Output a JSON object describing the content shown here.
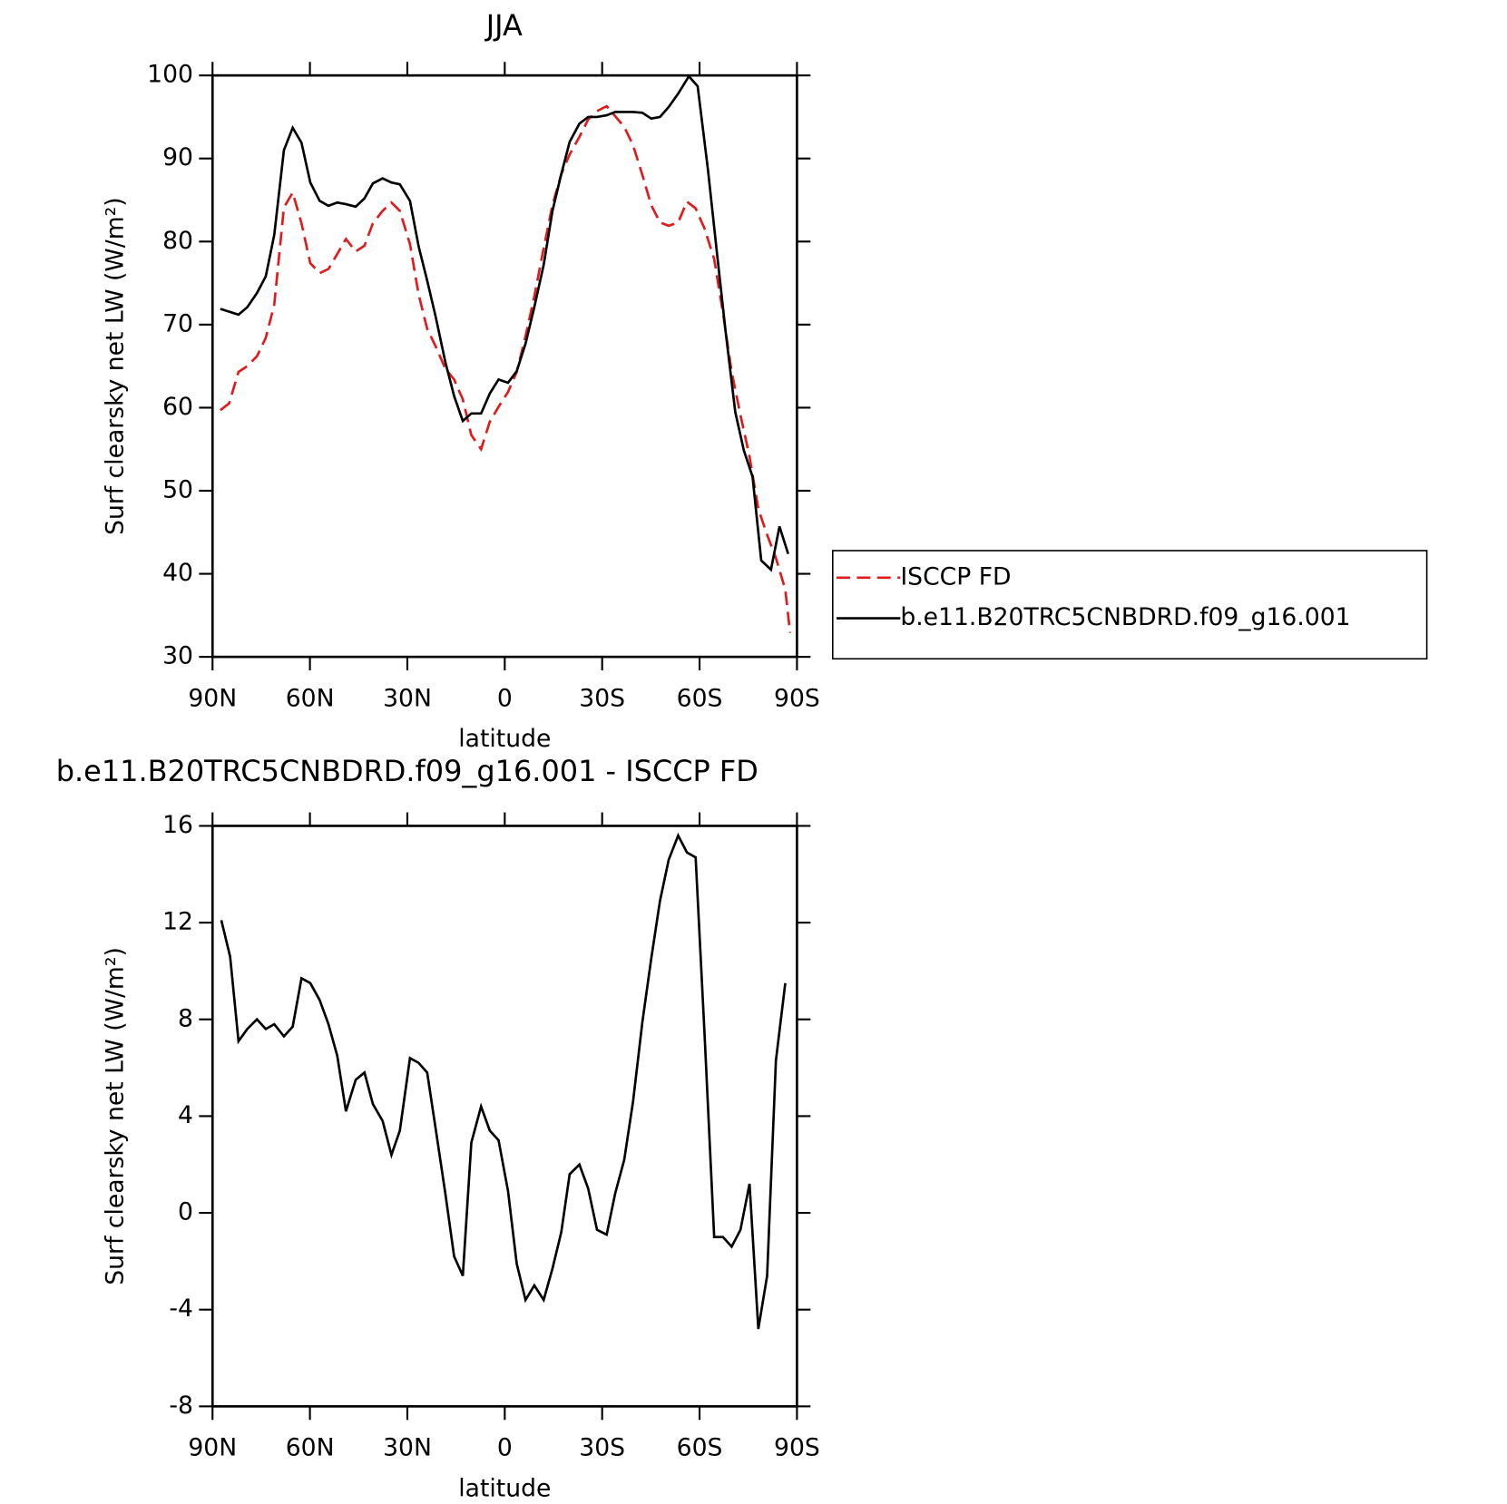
{
  "chart_data": [
    {
      "type": "line",
      "title": "JJA",
      "xlabel": "latitude",
      "ylabel": "Surf clearsky net LW (W/m²)",
      "xlim": [
        90,
        -90
      ],
      "xticks": [
        {
          "value": 90,
          "label": "90N"
        },
        {
          "value": 60,
          "label": "60N"
        },
        {
          "value": 30,
          "label": "30N"
        },
        0,
        {
          "value": -30,
          "label": "30S"
        },
        {
          "value": -60,
          "label": "60S"
        },
        {
          "value": -90,
          "label": "90S"
        }
      ],
      "ylim": [
        30,
        100
      ],
      "yticks": [
        30,
        40,
        50,
        60,
        70,
        80,
        90,
        100
      ],
      "legend": "right",
      "series": [
        {
          "name": "ISCCP FD",
          "color": "#e31a1c",
          "dash": true,
          "x": [
            87.6,
            84.9,
            82,
            79.3,
            76.3,
            73.6,
            71,
            68,
            65.3,
            62.6,
            59.9,
            57,
            54.3,
            51.6,
            48.9,
            45.9,
            43.2,
            40.6,
            37.6,
            34.9,
            32.3,
            29.2,
            26.5,
            23.9,
            21.3,
            18.3,
            15.6,
            12.9,
            10.3,
            7.3,
            4.6,
            1.9,
            -1,
            -3.7,
            -6.4,
            -9.1,
            -12,
            -14.7,
            -17.4,
            -20,
            -23,
            -25.7,
            -28.4,
            -31.4,
            -34,
            -36.8,
            -39.5,
            -42.4,
            -45.1,
            -47.8,
            -50.5,
            -53.4,
            -56.1,
            -58.8,
            -61.5,
            -64.5,
            -67.2,
            -69.9,
            -72.6,
            -75.4,
            -78.1,
            -80.8,
            -83.5,
            -86.4,
            -87.9
          ],
          "values": [
            59.7,
            60.5,
            64.3,
            65,
            66.2,
            68.4,
            72.4,
            84.1,
            85.9,
            82.2,
            77.4,
            76.2,
            76.7,
            78.5,
            80.3,
            78.8,
            79.5,
            82.2,
            83.7,
            84.7,
            83.7,
            79.7,
            73.6,
            69.5,
            67.4,
            64.7,
            63.4,
            61,
            56.7,
            55,
            58.3,
            60.1,
            61.9,
            64.3,
            68.6,
            73.4,
            79.2,
            84.4,
            88.1,
            90.5,
            92.6,
            94.7,
            95.7,
            96.3,
            95.1,
            93.8,
            91.6,
            88,
            84.4,
            82.3,
            81.9,
            82.3,
            84.8,
            84,
            81.6,
            77.9,
            71.4,
            64.3,
            59.1,
            54.1,
            47.8,
            44.7,
            41.9,
            38.1,
            32.9
          ]
        },
        {
          "name": "b.e11.B20TRC5CNBDRD.f09_g16.001",
          "color": "#000000",
          "dash": false,
          "x": [
            87.6,
            82,
            79.3,
            76.3,
            73.6,
            71,
            68,
            65.3,
            62.6,
            59.9,
            57,
            54.3,
            51.6,
            48.9,
            45.9,
            43.2,
            40.6,
            37.6,
            34.9,
            32.3,
            29.2,
            26.5,
            23.9,
            21.3,
            18.3,
            15.6,
            12.9,
            10.3,
            7.3,
            4.6,
            1.9,
            -1,
            -3.7,
            -6.4,
            -9.1,
            -12,
            -14.7,
            -17.4,
            -20,
            -23,
            -25.7,
            -28.4,
            -31.4,
            -34,
            -36.8,
            -39.5,
            -42.4,
            -45.1,
            -47.8,
            -50.5,
            -53.4,
            -56.7,
            -59.4,
            -62.6,
            -65.3,
            -68,
            -71,
            -73.6,
            -76.3,
            -79,
            -82,
            -84.6,
            -87.3
          ],
          "values": [
            71.9,
            71.2,
            72.1,
            73.8,
            75.8,
            80.8,
            91,
            93.7,
            91.9,
            87.1,
            84.9,
            84.3,
            84.7,
            84.5,
            84.2,
            85.2,
            87,
            87.6,
            87.1,
            86.9,
            84.9,
            79.4,
            75.3,
            71,
            65.5,
            61.4,
            58.4,
            59.3,
            59.3,
            61.7,
            63.4,
            63,
            64.4,
            67.7,
            72.1,
            77.2,
            83.7,
            88.1,
            92,
            94.2,
            95,
            95,
            95.2,
            95.6,
            95.6,
            95.6,
            95.5,
            94.8,
            95,
            96.2,
            97.8,
            99.9,
            98.7,
            88.6,
            78.8,
            69.2,
            59.5,
            54.9,
            51.7,
            41.6,
            40.5,
            45.7,
            42.4
          ]
        }
      ]
    },
    {
      "type": "line",
      "title": "b.e11.B20TRC5CNBDRD.f09_g16.001 - ISCCP FD",
      "xlabel": "latitude",
      "ylabel": "Surf clearsky net LW (W/m²)",
      "xlim": [
        90,
        -90
      ],
      "xticks": [
        {
          "value": 90,
          "label": "90N"
        },
        {
          "value": 60,
          "label": "60N"
        },
        {
          "value": 30,
          "label": "30N"
        },
        0,
        {
          "value": -30,
          "label": "30S"
        },
        {
          "value": -60,
          "label": "60S"
        },
        {
          "value": -90,
          "label": "90S"
        }
      ],
      "ylim": [
        -8,
        16
      ],
      "yticks": [
        -8,
        -4,
        0,
        4,
        8,
        12,
        16
      ],
      "series": [
        {
          "color": "#000000",
          "dash": false,
          "x": [
            87.3,
            84.6,
            82,
            79.3,
            76.3,
            73.6,
            71,
            68,
            65.3,
            62.6,
            59.9,
            57,
            54.3,
            51.6,
            48.9,
            45.9,
            43.2,
            40.6,
            37.6,
            34.9,
            32.3,
            29.2,
            26.5,
            23.9,
            21.3,
            18.3,
            15.6,
            12.9,
            10.3,
            7.3,
            4.6,
            1.9,
            -1,
            -3.7,
            -6.4,
            -9.1,
            -12,
            -14.7,
            -17.4,
            -20,
            -23,
            -25.7,
            -28.4,
            -31.4,
            -34,
            -36.8,
            -39.5,
            -42.4,
            -45.1,
            -47.8,
            -50.5,
            -53.4,
            -56.1,
            -58.8,
            -61.5,
            -64.5,
            -67.2,
            -69.9,
            -72.6,
            -75.4,
            -78.1,
            -80.8,
            -83.5,
            -86.4
          ],
          "values": [
            12.1,
            10.6,
            7.1,
            7.6,
            8,
            7.6,
            7.8,
            7.3,
            7.7,
            9.7,
            9.5,
            8.8,
            7.8,
            6.5,
            4.2,
            5.5,
            5.8,
            4.5,
            3.8,
            2.4,
            3.4,
            6.4,
            6.2,
            5.8,
            3.5,
            0.8,
            -1.8,
            -2.6,
            2.9,
            4.4,
            3.4,
            3,
            0.9,
            -2.1,
            -3.6,
            -3,
            -3.6,
            -2.3,
            -0.8,
            1.6,
            2,
            1,
            -0.7,
            -0.9,
            0.8,
            2.2,
            4.6,
            7.9,
            10.5,
            12.9,
            14.6,
            15.6,
            14.9,
            14.7,
            7.5,
            -1,
            -1,
            -1.4,
            -0.7,
            1.2,
            -4.8,
            -2.6,
            6.3,
            9.5
          ]
        }
      ]
    }
  ]
}
